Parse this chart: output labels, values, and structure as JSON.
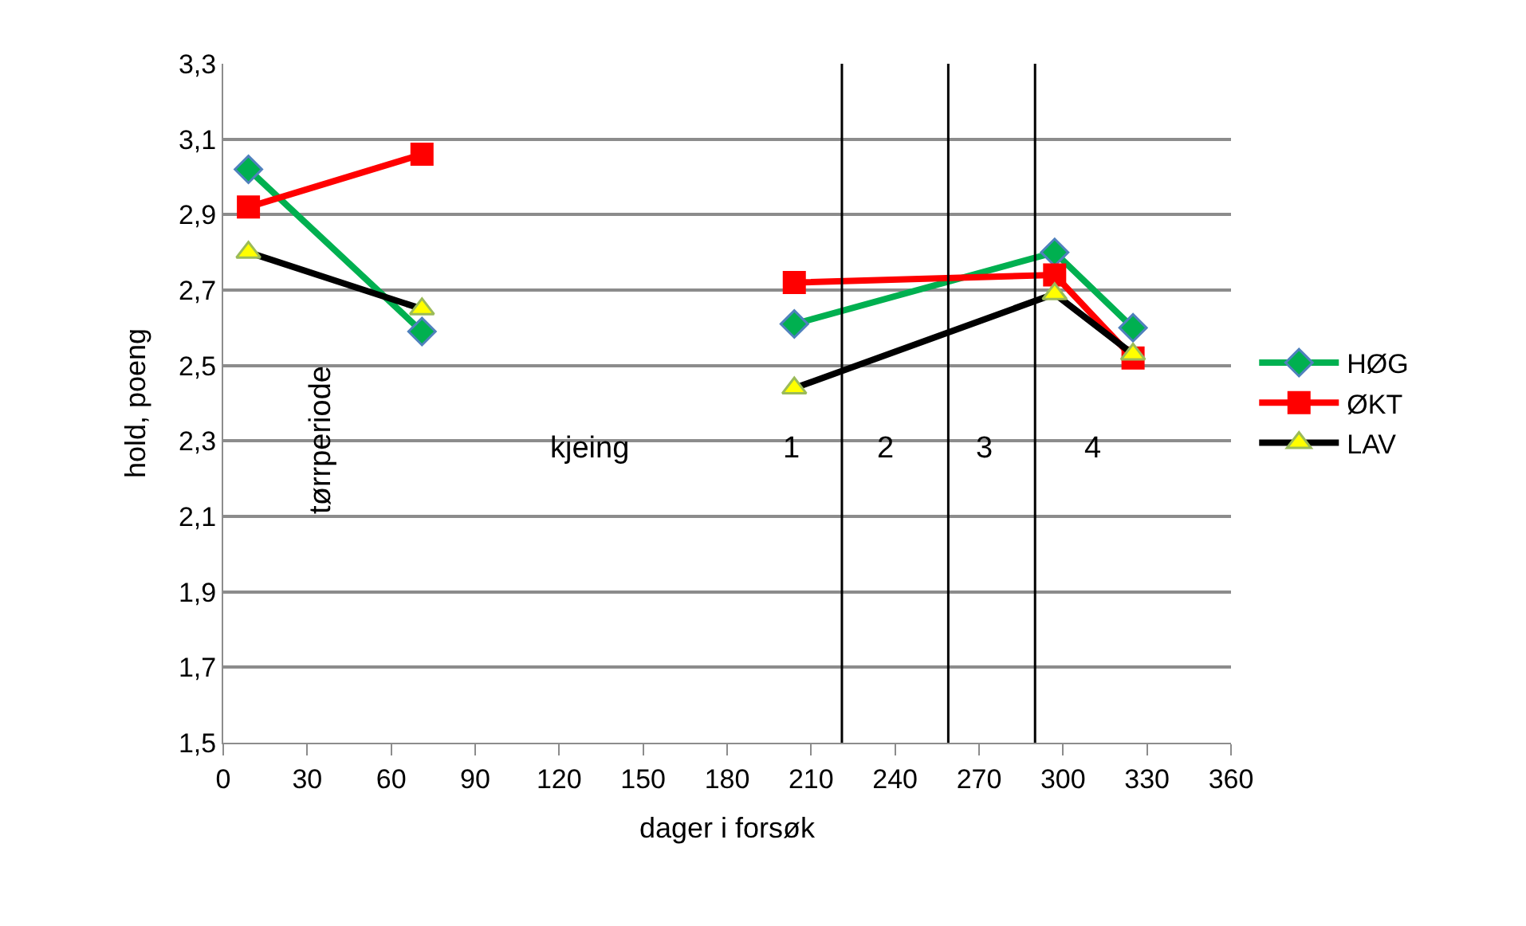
{
  "chart_data": {
    "type": "line",
    "xlabel": "dager i forsøk",
    "ylabel": "hold, poeng",
    "x": [
      9,
      71,
      140,
      204,
      297,
      325
    ],
    "series": [
      {
        "name": "HØG",
        "color": "#00b050",
        "marker": "diamond",
        "colors": [
          "#00b050",
          "#00b050",
          null,
          "#00b050",
          "#00b050",
          "#00b050"
        ],
        "values": [
          3.02,
          2.59,
          null,
          2.61,
          2.8,
          2.6
        ]
      },
      {
        "name": "ØKT",
        "color": "#ff0000",
        "marker": "square",
        "colors": [
          "#ff0000",
          "#ff0000",
          null,
          "#ff0000",
          "#ff0000",
          "#ff0000"
        ],
        "values": [
          2.92,
          3.06,
          null,
          2.72,
          2.74,
          2.52
        ]
      },
      {
        "name": "LAV",
        "color": "#000000",
        "marker": "triangle",
        "colors": [
          "#ffff00",
          "#ffff00",
          null,
          "#ffff00",
          "#ffff00",
          "#ffff00"
        ],
        "values": [
          2.8,
          2.65,
          null,
          2.44,
          2.69,
          2.53
        ]
      }
    ],
    "xlim": [
      0,
      360
    ],
    "xticks": [
      0,
      30,
      60,
      90,
      120,
      150,
      180,
      210,
      240,
      270,
      300,
      330,
      360
    ],
    "ylim": [
      1.5,
      3.3
    ],
    "yticks": [
      {
        "value": 1.5,
        "label": "1,5"
      },
      {
        "value": 1.7,
        "label": "1,7"
      },
      {
        "value": 1.9,
        "label": "1,9"
      },
      {
        "value": 2.1,
        "label": "2,1"
      },
      {
        "value": 2.3,
        "label": "2,3"
      },
      {
        "value": 2.5,
        "label": "2,5"
      },
      {
        "value": 2.7,
        "label": "2,7"
      },
      {
        "value": 2.9,
        "label": "2,9"
      },
      {
        "value": 3.1,
        "label": "3,1"
      },
      {
        "value": 3.3,
        "label": "3,3"
      }
    ],
    "ref_lines": [
      {
        "axis": "x",
        "value": 221,
        "color": "#000000"
      },
      {
        "axis": "x",
        "value": 259,
        "color": "#000000"
      },
      {
        "axis": "x",
        "value": 290,
        "color": "#000000"
      }
    ],
    "annotations": [
      "tørrperiode",
      "kjeing",
      "1",
      "2",
      "3",
      "4"
    ],
    "grid": "y",
    "legend": "right",
    "line_style": "solid"
  }
}
